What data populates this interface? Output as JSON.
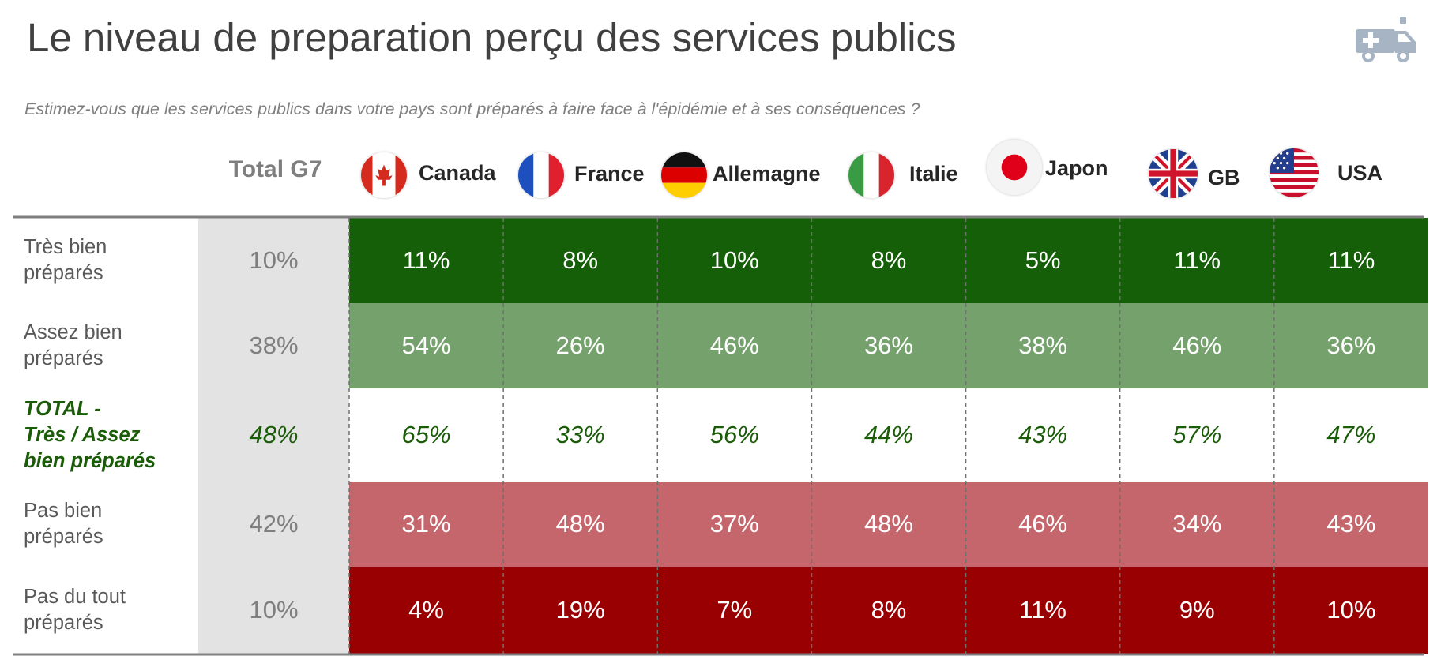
{
  "title": "Le niveau de preparation perçu des services publics",
  "subtitle": "Estimez-vous que les services publics dans votre pays sont préparés à faire face à l'épidémie et à ses conséquences ?",
  "icon": "ambulance-icon",
  "colors": {
    "tres_bien": "#155f08",
    "assez_bien": "#75a16c",
    "total_row_bg": "#ffffff",
    "pas_bien": "#c4666b",
    "pas_du_tout": "#980002",
    "total_column_bg": "#e3e3e3",
    "green_text": "#1a5c07"
  },
  "chart_data": {
    "type": "table",
    "column_header_total": "Total G7",
    "columns": [
      "Canada",
      "France",
      "Allemagne",
      "Italie",
      "Japon",
      "GB",
      "USA"
    ],
    "rows": [
      {
        "label_lines": [
          "Très bien",
          "préparés"
        ],
        "total": "10%",
        "values": [
          "11%",
          "8%",
          "10%",
          "8%",
          "5%",
          "11%",
          "11%"
        ]
      },
      {
        "label_lines": [
          "Assez bien",
          "préparés"
        ],
        "total": "38%",
        "values": [
          "54%",
          "26%",
          "46%",
          "36%",
          "38%",
          "46%",
          "36%"
        ]
      },
      {
        "label_lines": [
          "TOTAL -",
          "Très / Assez",
          "bien préparés"
        ],
        "total": "48%",
        "values": [
          "65%",
          "33%",
          "56%",
          "44%",
          "43%",
          "57%",
          "47%"
        ]
      },
      {
        "label_lines": [
          "Pas bien",
          "préparés"
        ],
        "total": "42%",
        "values": [
          "31%",
          "48%",
          "37%",
          "48%",
          "46%",
          "34%",
          "43%"
        ]
      },
      {
        "label_lines": [
          "Pas du tout",
          "préparés"
        ],
        "total": "10%",
        "values": [
          "4%",
          "19%",
          "7%",
          "8%",
          "11%",
          "9%",
          "10%"
        ]
      }
    ]
  }
}
